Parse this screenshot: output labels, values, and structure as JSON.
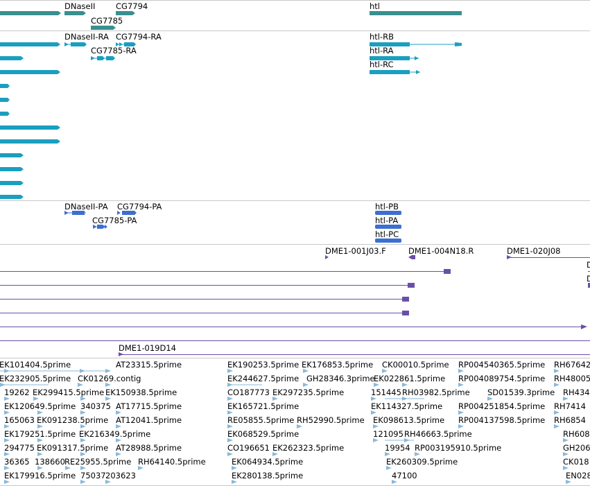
{
  "colors": {
    "gene": "#3a8f8f",
    "transcript_flybase": "#1a9fbf",
    "transcript_protein": "#3c6fd0",
    "clone": "#6a4fa8",
    "est": "#8ab8d8",
    "divider": "#c8c8c8"
  },
  "tracks": {
    "gene_labels": {
      "dnaseii": "DNaseII",
      "cg7794": "CG7794",
      "cg7785": "CG7785",
      "htl": "htl"
    },
    "transcript_labels": {
      "dnaseii_ra": "DNaseII-RA",
      "cg7794_ra": "CG7794-RA",
      "cg7785_ra": "CG7785-RA",
      "htl_rb": "htl-RB",
      "htl_ra": "htl-RA",
      "htl_rc": "htl-RC"
    },
    "protein_labels": {
      "dnaseii_pa": "DNaseII-PA",
      "cg7794_pa": "CG7794-PA",
      "cg7785_pa": "CG7785-PA",
      "htl_pb": "htl-PB",
      "htl_pa": "htl-PA",
      "htl_pc": "htl-PC"
    },
    "clone_labels": {
      "c1": "DME1-001J03.F",
      "c2": "DME1-004N18.R",
      "c3": "DME1-020J08",
      "c4": "DME1-019D14",
      "edge1": "D",
      "edge2": "D"
    },
    "est_labels": {
      "r1a": "EK101404.5prime",
      "r1b": "AT23315.5prime",
      "r1c": "EK190253.5prime",
      "r1d": "EK176853.5prime",
      "r1e": "CK00010.5prime",
      "r1f": "RP004540365.5prime",
      "r1g": "RH67642",
      "r2a": "EK232905.5prime",
      "r2b": "CK01269.contig",
      "r2c": "EK244627.5prime",
      "r2d": "GH28346.3prime",
      "r2e": "EK022861.5prime",
      "r2f": "RP004089754.5prime",
      "r2g": "RH48005",
      "r3a": "19262",
      "r3b": "EK299415.5prime",
      "r3c": "EK150938.5prime",
      "r3d": "CO187773",
      "r3e": "EK297235.5prime",
      "r3f": "151445",
      "r3g": "RH03982.5prime",
      "r3h": "SD01539.3prime",
      "r3i": "RH434",
      "r4a": "EK120649.5prime",
      "r4b": "340375",
      "r4c": "AT17715.5prime",
      "r4d": "EK165721.5prime",
      "r4e": "EK114327.5prime",
      "r4f": "RP004251854.5prime",
      "r4g": "RH7414",
      "r5a": "165063",
      "r5b": "EK091238.5prime",
      "r5c": "AT12041.5prime",
      "r5d": "RE05855.5prime",
      "r5e": "RH52990.5prime",
      "r5f": "EK098613.5prime",
      "r5g": "RP004137598.5prime",
      "r5h": "RH6854",
      "r6a": "EK179251.5prime",
      "r6b": "EK216349.5prime",
      "r6c": "EK068529.5prime",
      "r6d": "121095",
      "r6e": "RH46663.5prime",
      "r6f": "RH608",
      "r7a": "294775",
      "r7b": "EK091317.5prime",
      "r7c": "AT28988.5prime",
      "r7d": "CO196651",
      "r7e": "EK262323.5prime",
      "r7f": "19954",
      "r7g": "RP003195910.5prime",
      "r7h": "GH206",
      "r8a": "36365",
      "r8b": "138660",
      "r8c": "RE25955.5prime",
      "r8d": "RH64140.5prime",
      "r8e": "EK064934.5prime",
      "r8f": "EK260309.5prime",
      "r8g": "CK018",
      "r9a": "EK179916.5prime",
      "r9b": "75037",
      "r9c": "203623",
      "r9d": "EK280138.5prime",
      "r9e": "47100",
      "r9f": "EN028"
    }
  }
}
